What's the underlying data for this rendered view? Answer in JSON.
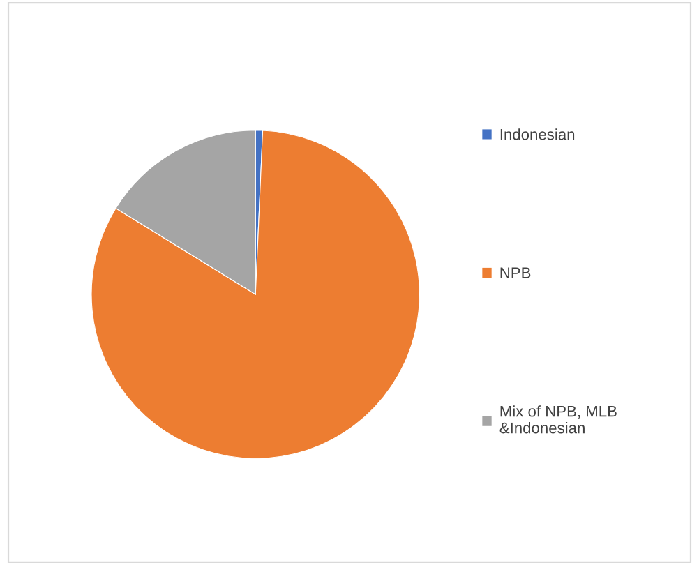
{
  "chart_data": {
    "type": "pie",
    "categories": [
      "Indonesian",
      "NPB",
      "Mix of NPB, MLB &Indonesian"
    ],
    "values": [
      0.7,
      83.1,
      16.2
    ],
    "colors": [
      "#4472c4",
      "#ed7d31",
      "#a5a5a5"
    ],
    "legend": "right"
  }
}
